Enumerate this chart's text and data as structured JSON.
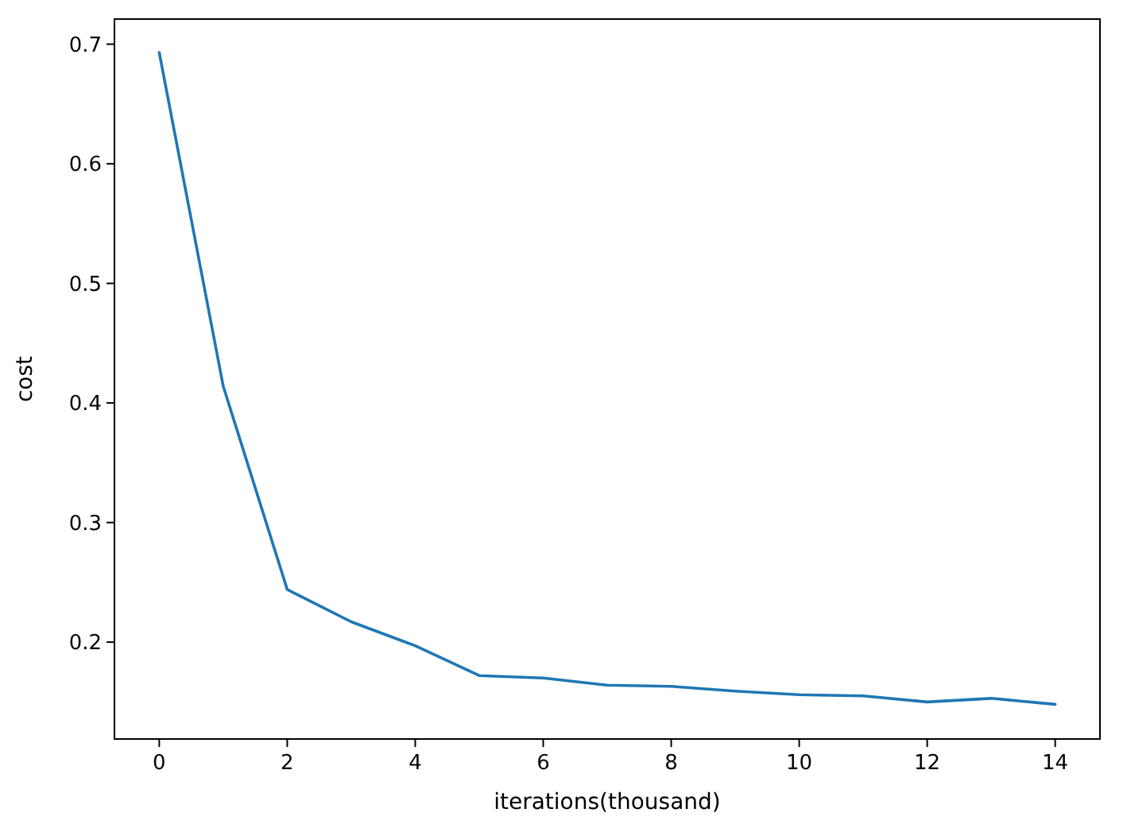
{
  "chart_data": {
    "type": "line",
    "xlabel": "iterations(thousand)",
    "ylabel": "cost",
    "x": [
      0,
      1,
      2,
      3,
      4,
      5,
      6,
      7,
      8,
      9,
      10,
      11,
      12,
      13,
      14
    ],
    "series": [
      {
        "color": "#1f77b4",
        "values": [
          0.693,
          0.414,
          0.244,
          0.217,
          0.197,
          0.172,
          0.17,
          0.164,
          0.163,
          0.159,
          0.156,
          0.155,
          0.15,
          0.153,
          0.148
        ]
      }
    ],
    "xlim": [
      -0.7,
      14.7
    ],
    "ylim": [
      0.119,
      0.721
    ],
    "xticks": [
      0,
      2,
      4,
      6,
      8,
      10,
      12,
      14
    ],
    "yticks": [
      0.2,
      0.3,
      0.4,
      0.5,
      0.6,
      0.7
    ],
    "grid": false,
    "marker": "none",
    "line_style": "solid"
  }
}
